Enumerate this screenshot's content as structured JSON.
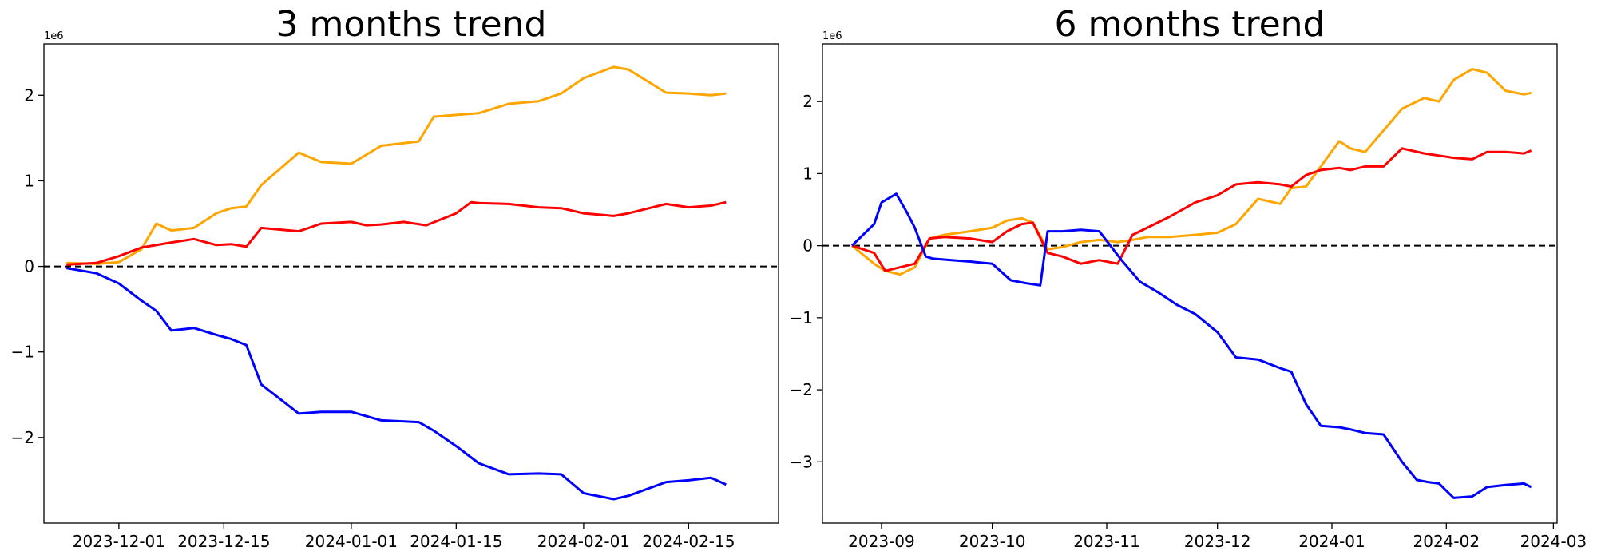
{
  "chart_data": [
    {
      "type": "line",
      "title": "3 months trend",
      "xlabel": "",
      "ylabel": "",
      "y_multiplier": "1e6",
      "x_tick_labels": [
        "2023-12-01",
        "2023-12-15",
        "2024-01-01",
        "2024-01-15",
        "2024-02-01",
        "2024-02-15"
      ],
      "y_tick_labels": [
        "2",
        "1",
        "0",
        "−1",
        "−2"
      ],
      "y_ticks": [
        2,
        1,
        0,
        -1,
        -2
      ],
      "ylim": [
        -3.0,
        2.6
      ],
      "xlim": [
        "2023-11-21",
        "2024-02-27"
      ],
      "reference_line": {
        "y": 0,
        "style": "dashed",
        "color": "#000000"
      },
      "grid": false,
      "series": [
        {
          "color": "#ffa500",
          "x": [
            "2023-11-24",
            "2023-11-28",
            "2023-12-01",
            "2023-12-04",
            "2023-12-06",
            "2023-12-08",
            "2023-12-11",
            "2023-12-14",
            "2023-12-16",
            "2023-12-18",
            "2023-12-20",
            "2023-12-25",
            "2023-12-28",
            "2024-01-01",
            "2024-01-05",
            "2024-01-10",
            "2024-01-12",
            "2024-01-15",
            "2024-01-18",
            "2024-01-22",
            "2024-01-26",
            "2024-01-29",
            "2024-02-01",
            "2024-02-05",
            "2024-02-07",
            "2024-02-12",
            "2024-02-15",
            "2024-02-18",
            "2024-02-20"
          ],
          "values": [
            0.04,
            0.03,
            0.05,
            0.2,
            0.5,
            0.42,
            0.45,
            0.62,
            0.68,
            0.7,
            0.95,
            1.33,
            1.22,
            1.2,
            1.41,
            1.46,
            1.75,
            1.77,
            1.79,
            1.9,
            1.93,
            2.02,
            2.2,
            2.33,
            2.3,
            2.03,
            2.02,
            2.0,
            2.02
          ]
        },
        {
          "color": "#ff0000",
          "x": [
            "2023-11-24",
            "2023-11-28",
            "2023-12-01",
            "2023-12-04",
            "2023-12-08",
            "2023-12-11",
            "2023-12-14",
            "2023-12-16",
            "2023-12-18",
            "2023-12-20",
            "2023-12-25",
            "2023-12-28",
            "2024-01-01",
            "2024-01-03",
            "2024-01-05",
            "2024-01-08",
            "2024-01-11",
            "2024-01-15",
            "2024-01-17",
            "2024-01-18",
            "2024-01-22",
            "2024-01-26",
            "2024-01-29",
            "2024-02-01",
            "2024-02-05",
            "2024-02-07",
            "2024-02-12",
            "2024-02-15",
            "2024-02-18",
            "2024-02-20"
          ],
          "values": [
            0.02,
            0.04,
            0.12,
            0.22,
            0.28,
            0.32,
            0.25,
            0.26,
            0.23,
            0.45,
            0.41,
            0.5,
            0.52,
            0.48,
            0.49,
            0.52,
            0.48,
            0.62,
            0.75,
            0.74,
            0.73,
            0.69,
            0.68,
            0.62,
            0.59,
            0.62,
            0.73,
            0.69,
            0.71,
            0.75
          ]
        },
        {
          "color": "#0000ff",
          "x": [
            "2023-11-24",
            "2023-11-28",
            "2023-12-01",
            "2023-12-04",
            "2023-12-06",
            "2023-12-08",
            "2023-12-11",
            "2023-12-14",
            "2023-12-16",
            "2023-12-18",
            "2023-12-20",
            "2023-12-25",
            "2023-12-28",
            "2024-01-01",
            "2024-01-05",
            "2024-01-10",
            "2024-01-12",
            "2024-01-15",
            "2024-01-18",
            "2024-01-22",
            "2024-01-26",
            "2024-01-29",
            "2024-02-01",
            "2024-02-05",
            "2024-02-07",
            "2024-02-12",
            "2024-02-15",
            "2024-02-18",
            "2024-02-20"
          ],
          "values": [
            -0.02,
            -0.08,
            -0.2,
            -0.4,
            -0.52,
            -0.75,
            -0.72,
            -0.8,
            -0.85,
            -0.92,
            -1.38,
            -1.72,
            -1.7,
            -1.7,
            -1.8,
            -1.82,
            -1.92,
            -2.1,
            -2.3,
            -2.43,
            -2.42,
            -2.43,
            -2.65,
            -2.72,
            -2.68,
            -2.52,
            -2.5,
            -2.47,
            -2.55
          ]
        }
      ]
    },
    {
      "type": "line",
      "title": "6 months trend",
      "xlabel": "",
      "ylabel": "",
      "y_multiplier": "1e6",
      "x_tick_labels": [
        "2023-09",
        "2023-10",
        "2023-11",
        "2023-12",
        "2024-01",
        "2024-02",
        "2024-03"
      ],
      "y_tick_labels": [
        "2",
        "1",
        "0",
        "−1",
        "−2",
        "−3"
      ],
      "y_ticks": [
        2,
        1,
        0,
        -1,
        -2,
        -3
      ],
      "ylim": [
        -3.85,
        2.8
      ],
      "xlim": [
        "2023-08-16",
        "2024-03-02"
      ],
      "reference_line": {
        "y": 0,
        "style": "dashed",
        "color": "#000000"
      },
      "grid": false,
      "series": [
        {
          "color": "#ffa500",
          "x": [
            "2023-08-24",
            "2023-08-30",
            "2023-09-02",
            "2023-09-06",
            "2023-09-10",
            "2023-09-14",
            "2023-09-18",
            "2023-09-25",
            "2023-10-01",
            "2023-10-05",
            "2023-10-09",
            "2023-10-12",
            "2023-10-16",
            "2023-10-20",
            "2023-10-25",
            "2023-10-30",
            "2023-11-04",
            "2023-11-08",
            "2023-11-12",
            "2023-11-18",
            "2023-11-25",
            "2023-12-01",
            "2023-12-06",
            "2023-12-12",
            "2023-12-18",
            "2023-12-21",
            "2023-12-25",
            "2023-12-29",
            "2024-01-03",
            "2024-01-06",
            "2024-01-10",
            "2024-01-15",
            "2024-01-20",
            "2024-01-26",
            "2024-01-30",
            "2024-02-03",
            "2024-02-08",
            "2024-02-12",
            "2024-02-17",
            "2024-02-22",
            "2024-02-24"
          ],
          "values": [
            0.0,
            -0.25,
            -0.35,
            -0.4,
            -0.3,
            0.1,
            0.15,
            0.2,
            0.25,
            0.35,
            0.38,
            0.32,
            -0.05,
            -0.02,
            0.05,
            0.08,
            0.05,
            0.08,
            0.12,
            0.12,
            0.15,
            0.18,
            0.3,
            0.65,
            0.58,
            0.8,
            0.82,
            1.1,
            1.45,
            1.35,
            1.3,
            1.6,
            1.9,
            2.05,
            2.0,
            2.3,
            2.45,
            2.4,
            2.15,
            2.1,
            2.12
          ]
        },
        {
          "color": "#ff0000",
          "x": [
            "2023-08-24",
            "2023-08-30",
            "2023-09-02",
            "2023-09-06",
            "2023-09-10",
            "2023-09-14",
            "2023-09-18",
            "2023-09-25",
            "2023-10-01",
            "2023-10-05",
            "2023-10-09",
            "2023-10-12",
            "2023-10-16",
            "2023-10-20",
            "2023-10-25",
            "2023-10-30",
            "2023-11-04",
            "2023-11-08",
            "2023-11-12",
            "2023-11-18",
            "2023-11-25",
            "2023-12-01",
            "2023-12-06",
            "2023-12-12",
            "2023-12-18",
            "2023-12-21",
            "2023-12-25",
            "2023-12-29",
            "2024-01-03",
            "2024-01-06",
            "2024-01-10",
            "2024-01-15",
            "2024-01-20",
            "2024-01-26",
            "2024-01-30",
            "2024-02-03",
            "2024-02-08",
            "2024-02-12",
            "2024-02-17",
            "2024-02-22",
            "2024-02-24"
          ],
          "values": [
            0.0,
            -0.1,
            -0.35,
            -0.3,
            -0.25,
            0.1,
            0.12,
            0.1,
            0.05,
            0.2,
            0.3,
            0.32,
            -0.1,
            -0.15,
            -0.25,
            -0.2,
            -0.25,
            0.15,
            0.25,
            0.4,
            0.6,
            0.7,
            0.85,
            0.88,
            0.85,
            0.82,
            0.98,
            1.05,
            1.08,
            1.05,
            1.1,
            1.1,
            1.35,
            1.28,
            1.25,
            1.22,
            1.2,
            1.3,
            1.3,
            1.28,
            1.32
          ]
        },
        {
          "color": "#0000ff",
          "x": [
            "2023-08-24",
            "2023-08-30",
            "2023-09-01",
            "2023-09-05",
            "2023-09-08",
            "2023-09-10",
            "2023-09-13",
            "2023-09-15",
            "2023-09-20",
            "2023-09-25",
            "2023-10-01",
            "2023-10-06",
            "2023-10-10",
            "2023-10-14",
            "2023-10-16",
            "2023-10-20",
            "2023-10-25",
            "2023-10-30",
            "2023-11-05",
            "2023-11-10",
            "2023-11-15",
            "2023-11-20",
            "2023-11-25",
            "2023-12-01",
            "2023-12-06",
            "2023-12-12",
            "2023-12-18",
            "2023-12-21",
            "2023-12-25",
            "2023-12-29",
            "2024-01-03",
            "2024-01-06",
            "2024-01-10",
            "2024-01-15",
            "2024-01-20",
            "2024-01-24",
            "2024-01-27",
            "2024-01-30",
            "2024-02-03",
            "2024-02-08",
            "2024-02-12",
            "2024-02-17",
            "2024-02-22",
            "2024-02-24"
          ],
          "values": [
            0.0,
            0.3,
            0.6,
            0.72,
            0.45,
            0.25,
            -0.15,
            -0.18,
            -0.2,
            -0.22,
            -0.25,
            -0.48,
            -0.52,
            -0.55,
            0.2,
            0.2,
            0.22,
            0.2,
            -0.2,
            -0.5,
            -0.65,
            -0.82,
            -0.95,
            -1.2,
            -1.55,
            -1.58,
            -1.7,
            -1.75,
            -2.2,
            -2.5,
            -2.52,
            -2.55,
            -2.6,
            -2.62,
            -3.0,
            -3.25,
            -3.28,
            -3.3,
            -3.5,
            -3.48,
            -3.35,
            -3.32,
            -3.3,
            -3.35
          ]
        }
      ]
    }
  ]
}
